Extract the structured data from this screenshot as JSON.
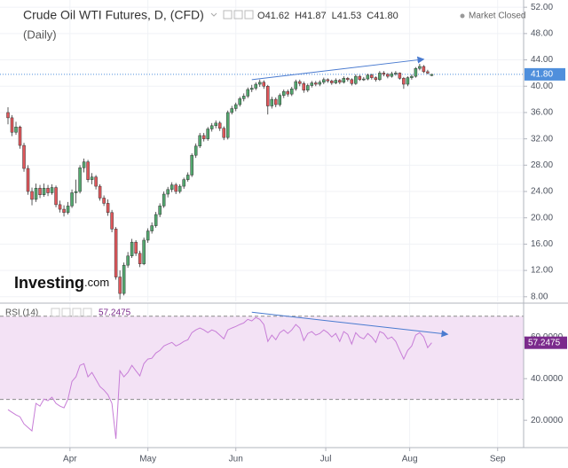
{
  "chart_data": {
    "type": "candlestick",
    "title": "Crude Oil WTI Futures, D, (CFD)",
    "subtitle": "(Daily)",
    "header_values": [
      {
        "prefix": "O",
        "text": "41.62"
      },
      {
        "prefix": "H",
        "text": "41.87"
      },
      {
        "prefix": "L",
        "text": "41.53"
      },
      {
        "prefix": "C",
        "text": "41.80"
      }
    ],
    "status": "Market Closed",
    "brand": "Investing",
    "brand_suffix": ".com",
    "xlim": [
      -2,
      129
    ],
    "xticks": [
      {
        "value": 15.5,
        "label": "Apr"
      },
      {
        "value": 35,
        "label": "May"
      },
      {
        "value": 57,
        "label": "Jun"
      },
      {
        "value": 79.5,
        "label": "Jul"
      },
      {
        "value": 100.5,
        "label": "Aug"
      },
      {
        "value": 122.5,
        "label": "Sep"
      }
    ],
    "ylim": [
      7.3,
      53.1
    ],
    "yticks": [
      {
        "value": 8,
        "label": "8.00"
      },
      {
        "value": 12,
        "label": "12.00"
      },
      {
        "value": 16,
        "label": "16.00"
      },
      {
        "value": 20,
        "label": "20.00"
      },
      {
        "value": 24,
        "label": "24.00"
      },
      {
        "value": 28,
        "label": "28.00"
      },
      {
        "value": 32,
        "label": "32.00"
      },
      {
        "value": 36,
        "label": "36.00"
      },
      {
        "value": 40,
        "label": "40.00"
      },
      {
        "value": 44,
        "label": "44.00"
      },
      {
        "value": 48,
        "label": "48.00"
      },
      {
        "value": 52,
        "label": "52.00"
      }
    ],
    "grid": true,
    "up_color": "#53a86f",
    "down_color": "#e0575b",
    "current_price": {
      "value": 41.8,
      "label": "41.80",
      "color": "#4f8fdc"
    },
    "ohlc": [
      [
        36.0,
        36.8,
        34.2,
        35.2
      ],
      [
        35.2,
        35.6,
        32.4,
        33.0
      ],
      [
        33.0,
        34.6,
        32.6,
        33.8
      ],
      [
        33.8,
        34.0,
        30.5,
        31.0
      ],
      [
        31.0,
        31.4,
        27.0,
        27.5
      ],
      [
        27.5,
        28.0,
        23.5,
        24.0
      ],
      [
        24.0,
        24.6,
        21.9,
        22.8
      ],
      [
        22.8,
        25.2,
        22.4,
        24.5
      ],
      [
        24.5,
        25.0,
        23.0,
        23.5
      ],
      [
        23.5,
        25.2,
        23.2,
        24.5
      ],
      [
        24.5,
        25.0,
        23.3,
        23.8
      ],
      [
        23.8,
        25.1,
        23.5,
        24.6
      ],
      [
        24.6,
        24.9,
        21.6,
        22.0
      ],
      [
        22.0,
        22.6,
        20.8,
        21.3
      ],
      [
        21.3,
        21.9,
        20.2,
        20.8
      ],
      [
        20.8,
        22.4,
        20.5,
        21.8
      ],
      [
        21.8,
        24.3,
        21.5,
        23.8
      ],
      [
        23.8,
        25.8,
        22.2,
        24.0
      ],
      [
        24.0,
        28.0,
        23.7,
        27.6
      ],
      [
        27.6,
        29.0,
        26.9,
        28.5
      ],
      [
        28.5,
        28.8,
        25.4,
        25.8
      ],
      [
        25.8,
        26.8,
        25.1,
        26.2
      ],
      [
        26.2,
        26.5,
        24.3,
        24.8
      ],
      [
        24.8,
        25.1,
        22.6,
        23.0
      ],
      [
        23.0,
        23.4,
        21.8,
        22.2
      ],
      [
        22.2,
        22.8,
        20.3,
        20.8
      ],
      [
        20.8,
        21.2,
        17.8,
        18.3
      ],
      [
        18.3,
        18.6,
        10.6,
        11.0
      ],
      [
        11.0,
        12.0,
        7.6,
        8.5
      ],
      [
        8.5,
        13.2,
        8.2,
        12.8
      ],
      [
        12.8,
        14.8,
        12.4,
        14.2
      ],
      [
        14.2,
        16.8,
        13.9,
        16.3
      ],
      [
        16.3,
        16.6,
        14.2,
        14.6
      ],
      [
        14.6,
        15.0,
        12.5,
        13.0
      ],
      [
        13.0,
        17.0,
        12.8,
        16.6
      ],
      [
        16.6,
        18.4,
        16.2,
        18.0
      ],
      [
        18.0,
        19.3,
        17.6,
        18.8
      ],
      [
        18.8,
        20.9,
        18.5,
        20.5
      ],
      [
        20.5,
        22.2,
        20.1,
        21.8
      ],
      [
        21.8,
        24.0,
        21.5,
        23.6
      ],
      [
        23.6,
        24.7,
        23.1,
        24.3
      ],
      [
        24.3,
        25.4,
        23.9,
        25.0
      ],
      [
        25.0,
        25.3,
        23.6,
        24.0
      ],
      [
        24.0,
        25.1,
        23.7,
        24.8
      ],
      [
        24.8,
        26.1,
        24.4,
        25.8
      ],
      [
        25.8,
        26.9,
        25.5,
        26.5
      ],
      [
        26.5,
        29.8,
        26.2,
        29.5
      ],
      [
        29.5,
        31.3,
        29.1,
        30.9
      ],
      [
        30.9,
        32.9,
        30.6,
        32.5
      ],
      [
        32.5,
        32.9,
        31.6,
        32.0
      ],
      [
        32.0,
        33.8,
        31.7,
        33.5
      ],
      [
        33.5,
        34.4,
        33.1,
        34.0
      ],
      [
        34.0,
        34.8,
        33.6,
        34.4
      ],
      [
        34.4,
        34.7,
        33.2,
        33.6
      ],
      [
        33.6,
        33.9,
        31.8,
        32.2
      ],
      [
        32.2,
        36.3,
        31.9,
        36.0
      ],
      [
        36.0,
        37.0,
        35.7,
        36.6
      ],
      [
        36.6,
        37.5,
        36.2,
        37.2
      ],
      [
        37.2,
        38.4,
        36.9,
        38.1
      ],
      [
        38.1,
        38.9,
        37.7,
        38.5
      ],
      [
        38.5,
        39.8,
        38.2,
        39.5
      ],
      [
        39.5,
        40.2,
        39.1,
        39.7
      ],
      [
        39.7,
        40.6,
        39.4,
        40.3
      ],
      [
        40.3,
        41.0,
        39.9,
        40.6
      ],
      [
        40.6,
        40.9,
        39.6,
        40.0
      ],
      [
        40.0,
        40.2,
        35.7,
        37.0
      ],
      [
        37.0,
        38.4,
        36.6,
        38.0
      ],
      [
        38.0,
        38.3,
        36.8,
        37.2
      ],
      [
        37.2,
        38.9,
        36.9,
        38.6
      ],
      [
        38.6,
        39.5,
        38.2,
        39.2
      ],
      [
        39.2,
        39.5,
        38.4,
        38.8
      ],
      [
        38.8,
        39.9,
        38.5,
        39.6
      ],
      [
        39.6,
        41.0,
        39.3,
        40.7
      ],
      [
        40.7,
        41.0,
        40.0,
        40.4
      ],
      [
        40.4,
        40.7,
        39.0,
        39.4
      ],
      [
        39.4,
        40.4,
        39.1,
        40.1
      ],
      [
        40.1,
        40.8,
        39.8,
        40.5
      ],
      [
        40.5,
        40.8,
        40.0,
        40.3
      ],
      [
        40.3,
        40.9,
        40.0,
        40.6
      ],
      [
        40.6,
        41.3,
        40.3,
        41.0
      ],
      [
        41.0,
        41.2,
        40.5,
        40.8
      ],
      [
        40.8,
        41.0,
        40.2,
        40.5
      ],
      [
        40.5,
        41.2,
        40.3,
        40.9
      ],
      [
        40.9,
        41.1,
        40.3,
        40.6
      ],
      [
        40.6,
        41.5,
        40.4,
        41.2
      ],
      [
        41.2,
        41.4,
        40.7,
        41.0
      ],
      [
        41.0,
        41.2,
        40.1,
        40.4
      ],
      [
        40.4,
        41.8,
        40.2,
        41.5
      ],
      [
        41.5,
        41.7,
        40.8,
        41.0
      ],
      [
        41.0,
        41.4,
        40.8,
        41.1
      ],
      [
        41.1,
        41.9,
        40.9,
        41.7
      ],
      [
        41.7,
        41.9,
        41.0,
        41.3
      ],
      [
        41.3,
        41.5,
        40.7,
        41.0
      ],
      [
        41.0,
        42.3,
        40.8,
        42.0
      ],
      [
        42.0,
        42.3,
        41.5,
        41.8
      ],
      [
        41.8,
        42.0,
        41.2,
        41.5
      ],
      [
        41.5,
        42.2,
        41.3,
        41.9
      ],
      [
        41.9,
        42.3,
        41.6,
        42.0
      ],
      [
        42.0,
        42.1,
        41.0,
        41.2
      ],
      [
        41.2,
        41.4,
        39.6,
        40.3
      ],
      [
        40.3,
        41.5,
        40.0,
        41.3
      ],
      [
        41.3,
        41.8,
        41.0,
        41.5
      ],
      [
        41.5,
        42.9,
        41.3,
        42.7
      ],
      [
        42.7,
        43.4,
        42.4,
        43.0
      ],
      [
        43.0,
        43.2,
        42.0,
        42.2
      ],
      [
        42.2,
        42.5,
        41.8,
        42.0
      ],
      [
        41.62,
        41.87,
        41.53,
        41.8
      ]
    ],
    "trendlines": [
      {
        "x": [
          61,
          104
        ],
        "y": [
          41.0,
          44.1
        ],
        "color": "#4a7bd0"
      }
    ],
    "rsi": {
      "name": "RSI (14)",
      "color": "#c77dd7",
      "band_color": "#f3e2f5",
      "ylim": [
        9,
        75
      ],
      "yticks": [
        {
          "value": 20,
          "label": "20.0000"
        },
        {
          "value": 40,
          "label": "40.0000"
        },
        {
          "value": 60,
          "label": "60.0000"
        }
      ],
      "band": [
        30,
        70
      ],
      "values": [
        25.1,
        23.8,
        22.6,
        21.7,
        18.3,
        16.6,
        14.9,
        28.1,
        26.8,
        30.2,
        29.4,
        31.1,
        28.1,
        26.8,
        26.0,
        30.2,
        38.7,
        40.9,
        46.4,
        47.2,
        40.9,
        43.0,
        39.6,
        36.2,
        34.5,
        32.3,
        28.1,
        11.1,
        43.8,
        40.9,
        43.0,
        46.4,
        43.8,
        41.3,
        47.2,
        49.4,
        49.8,
        52.3,
        53.6,
        55.7,
        56.6,
        57.4,
        55.7,
        56.6,
        57.9,
        58.7,
        62.1,
        63.4,
        64.3,
        63.4,
        62.1,
        63.4,
        62.6,
        60.9,
        59.1,
        63.4,
        64.3,
        65.1,
        66.0,
        66.8,
        68.5,
        67.7,
        69.4,
        68.5,
        66.0,
        57.9,
        60.9,
        58.7,
        62.1,
        63.4,
        61.7,
        63.4,
        66.0,
        64.3,
        58.3,
        61.7,
        62.6,
        60.9,
        61.7,
        63.4,
        62.1,
        60.0,
        61.7,
        57.9,
        62.6,
        61.3,
        56.6,
        62.1,
        60.0,
        59.1,
        61.7,
        60.0,
        57.4,
        62.6,
        61.7,
        59.1,
        60.0,
        57.9,
        53.6,
        49.4,
        53.6,
        55.7,
        60.9,
        62.1,
        60.0,
        54.9,
        57.2475
      ],
      "value_color": "#7b2a8c",
      "trendline": {
        "x": [
          61,
          110
        ],
        "y": [
          71.9,
          61.3
        ],
        "color": "#4a7bd0"
      }
    }
  }
}
